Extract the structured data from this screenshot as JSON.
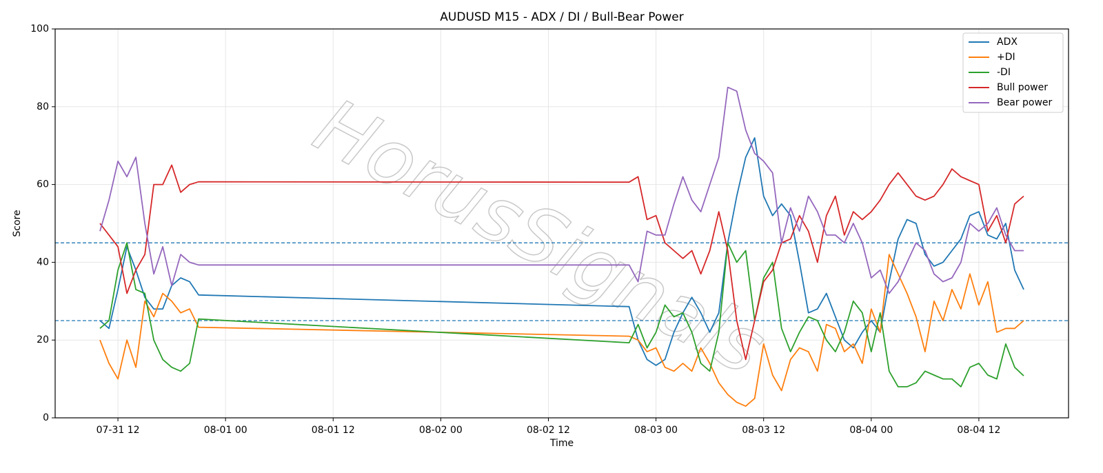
{
  "chart_data": {
    "type": "line",
    "title": "AUDUSD M15 - ADX / DI / Bull-Bear Power",
    "xlabel": "Time",
    "ylabel": "Score",
    "watermark": "HorusSignals",
    "x": [
      "07-31 10",
      "07-31 11",
      "07-31 12",
      "07-31 13",
      "07-31 14",
      "07-31 15",
      "07-31 16",
      "07-31 17",
      "07-31 18",
      "07-31 19",
      "07-31 20",
      "07-31 21",
      "08-02 21",
      "08-02 22",
      "08-02 23",
      "08-03 00",
      "08-03 01",
      "08-03 02",
      "08-03 03",
      "08-03 04",
      "08-03 05",
      "08-03 06",
      "08-03 07",
      "08-03 08",
      "08-03 09",
      "08-03 10",
      "08-03 11",
      "08-03 12",
      "08-03 13",
      "08-03 14",
      "08-03 15",
      "08-03 16",
      "08-03 17",
      "08-03 18",
      "08-03 19",
      "08-03 20",
      "08-03 21",
      "08-03 22",
      "08-03 23",
      "08-04 00",
      "08-04 01",
      "08-04 02",
      "08-04 03",
      "08-04 04",
      "08-04 05",
      "08-04 06",
      "08-04 07",
      "08-04 08",
      "08-04 09",
      "08-04 10",
      "08-04 11",
      "08-04 12",
      "08-04 13",
      "08-04 14",
      "08-04 15",
      "08-04 16",
      "08-04 17"
    ],
    "series": [
      {
        "name": "ADX",
        "color": "#1f77b4",
        "values": [
          25,
          23,
          33,
          44,
          38,
          31,
          28,
          28,
          34,
          36,
          35,
          31.6,
          28.6,
          20,
          15,
          13.5,
          15,
          22,
          27,
          31,
          27,
          22,
          27,
          45,
          57,
          67,
          72,
          57,
          52,
          55,
          52,
          40,
          27,
          28,
          32,
          26,
          20,
          18,
          22,
          25,
          22,
          35,
          46,
          51,
          50,
          42,
          39,
          40,
          43,
          46,
          52,
          53,
          47,
          46,
          50,
          38,
          33
        ]
      },
      {
        "name": "+DI",
        "color": "#ff7f0e",
        "values": [
          20,
          14,
          10,
          20,
          13,
          30,
          26,
          32,
          30,
          27,
          28,
          23.3,
          21,
          20,
          17,
          18,
          13,
          12,
          14,
          12,
          18,
          14,
          9,
          6,
          4,
          3,
          5,
          19,
          11,
          7,
          15,
          18,
          17,
          12,
          24,
          23,
          17,
          19,
          14,
          28,
          22,
          42,
          37,
          32,
          26,
          17,
          30,
          25,
          33,
          28,
          37,
          29,
          35,
          22,
          23,
          23,
          25
        ]
      },
      {
        "name": "-DI",
        "color": "#2ca02c",
        "values": [
          23,
          25,
          38,
          45,
          33,
          32,
          20,
          15,
          13,
          12,
          14,
          25.4,
          19.3,
          24,
          18,
          22,
          29,
          26,
          27,
          22,
          14,
          12,
          22,
          45,
          40,
          43,
          25,
          36,
          40,
          23,
          17,
          22,
          26,
          25,
          20,
          17,
          22,
          30,
          27,
          17,
          27,
          12,
          8,
          8,
          9,
          12,
          11,
          10,
          10,
          8,
          13,
          14,
          11,
          10,
          19,
          13,
          10.8
        ]
      },
      {
        "name": "Bull power",
        "color": "#d62728",
        "values": [
          50,
          47,
          44,
          32,
          38,
          42,
          60,
          60,
          65,
          58,
          60,
          60.7,
          60.6,
          62,
          51,
          52,
          45,
          43,
          41,
          43,
          37,
          43,
          53,
          43,
          25,
          15,
          25,
          35,
          38,
          45,
          46,
          52,
          48,
          40,
          52,
          57,
          47,
          53,
          51,
          53,
          56,
          60,
          63,
          60,
          57,
          56,
          57,
          60,
          64,
          62,
          61,
          60,
          48,
          52,
          45,
          55,
          57
        ]
      },
      {
        "name": "Bear power",
        "color": "#9467bd",
        "values": [
          48,
          56,
          66,
          62,
          67,
          50,
          37,
          44,
          34,
          42,
          40,
          39.3,
          39.3,
          35,
          48,
          47,
          47,
          55,
          62,
          56,
          53,
          60,
          67,
          85,
          84,
          74,
          68,
          66,
          63,
          45,
          54,
          48,
          57,
          53,
          47,
          47,
          45,
          50,
          45,
          36,
          38,
          32,
          35,
          40,
          45,
          43,
          37,
          35,
          36,
          40,
          50,
          48,
          50,
          54,
          47,
          43,
          43
        ]
      }
    ],
    "hlines": [
      45,
      25
    ],
    "hline_color": "#1f77b4",
    "xlim": [
      "07-31 05",
      "08-04 22"
    ],
    "xticks": [
      "07-31 12",
      "08-01 00",
      "08-01 12",
      "08-02 00",
      "08-02 12",
      "08-03 00",
      "08-03 12",
      "08-04 00",
      "08-04 12"
    ],
    "ylim": [
      0,
      100
    ],
    "yticks": [
      0,
      20,
      40,
      60,
      80,
      100
    ],
    "grid": true,
    "legend": "upper right"
  }
}
